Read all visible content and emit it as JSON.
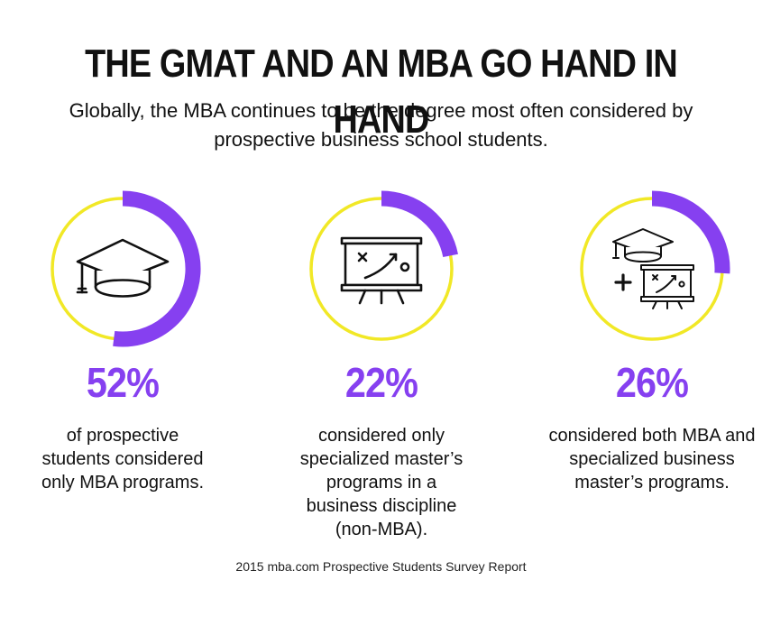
{
  "title": "THE GMAT AND AN MBA GO HAND IN HAND",
  "subtitle": "Globally, the MBA continues to be the degree most often considered by prospective business school students.",
  "source": "2015 mba.com Prospective Students Survey Report",
  "colors": {
    "accent": "#8640f0",
    "ring": "#f1e826",
    "text": "#111111"
  },
  "chart_data": {
    "type": "pie",
    "title": "THE GMAT AND AN MBA GO HAND IN HAND",
    "items": [
      {
        "label": "52%",
        "value": 52,
        "description": "of prospective students considered only MBA programs.",
        "icon": "graduation-cap-icon"
      },
      {
        "label": "22%",
        "value": 22,
        "description": "considered only specialized master’s programs in a business discipline (non-MBA).",
        "icon": "presentation-board-icon"
      },
      {
        "label": "26%",
        "value": 26,
        "description": "considered both MBA and specialized business master’s programs.",
        "icon": "cap-plus-board-icon"
      }
    ]
  }
}
